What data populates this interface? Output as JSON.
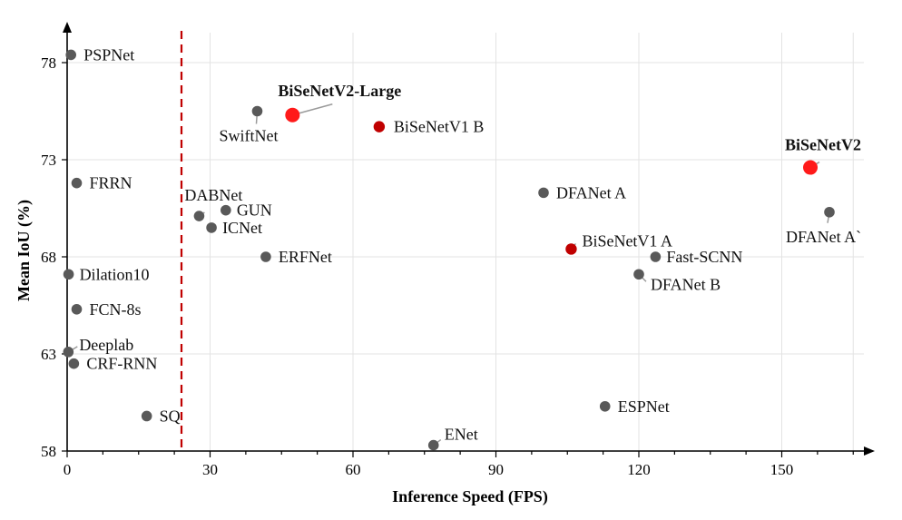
{
  "chart_data": {
    "type": "scatter",
    "title": "",
    "xlabel": "Inference Speed (FPS)",
    "ylabel": "Mean IoU (%)",
    "xlim": [
      0,
      170
    ],
    "ylim": [
      58,
      80
    ],
    "xticks": [
      0,
      30,
      60,
      90,
      120,
      150
    ],
    "yticks": [
      58,
      63,
      68,
      73,
      78
    ],
    "grid": true,
    "threshold_line": {
      "x": 24,
      "style": "dashed",
      "color": "#c00000"
    },
    "colors": {
      "default": "#595959",
      "bisenetv1": "#c00000",
      "bisenetv2": "#ff1a1a"
    },
    "points": [
      {
        "name": "PSPNet",
        "x": 0.8,
        "y": 78.4,
        "group": "default"
      },
      {
        "name": "FRRN",
        "x": 2,
        "y": 71.8,
        "group": "default"
      },
      {
        "name": "Dilation10",
        "x": 0.3,
        "y": 67.1,
        "group": "default"
      },
      {
        "name": "FCN-8s",
        "x": 2,
        "y": 65.3,
        "group": "default"
      },
      {
        "name": "Deeplab",
        "x": 0.25,
        "y": 63.1,
        "group": "default"
      },
      {
        "name": "CRF-RNN",
        "x": 1.4,
        "y": 62.5,
        "group": "default"
      },
      {
        "name": "SQ",
        "x": 16.7,
        "y": 59.8,
        "group": "default"
      },
      {
        "name": "DABNet",
        "x": 27.7,
        "y": 70.1,
        "group": "default"
      },
      {
        "name": "GUN",
        "x": 33.3,
        "y": 70.4,
        "group": "default"
      },
      {
        "name": "ICNet",
        "x": 30.3,
        "y": 69.5,
        "group": "default"
      },
      {
        "name": "ERFNet",
        "x": 41.7,
        "y": 68.0,
        "group": "default"
      },
      {
        "name": "SwiftNet",
        "x": 39.9,
        "y": 75.5,
        "group": "default"
      },
      {
        "name": "BiSeNetV2-Large",
        "x": 47.3,
        "y": 75.3,
        "group": "bisenetv2",
        "bold": true
      },
      {
        "name": "BiSeNetV1 B",
        "x": 65.5,
        "y": 74.7,
        "group": "bisenetv1"
      },
      {
        "name": "ENet",
        "x": 76.9,
        "y": 58.3,
        "group": "default"
      },
      {
        "name": "DFANet A",
        "x": 100,
        "y": 71.3,
        "group": "default"
      },
      {
        "name": "BiSeNetV1 A",
        "x": 105.8,
        "y": 68.4,
        "group": "bisenetv1"
      },
      {
        "name": "Fast-SCNN",
        "x": 123.5,
        "y": 68.0,
        "group": "default"
      },
      {
        "name": "DFANet B",
        "x": 120,
        "y": 67.1,
        "group": "default"
      },
      {
        "name": "ESPNet",
        "x": 112.9,
        "y": 60.3,
        "group": "default"
      },
      {
        "name": "BiSeNetV2",
        "x": 156,
        "y": 72.6,
        "group": "bisenetv2",
        "bold": true
      },
      {
        "name": "DFANet A`",
        "x": 160,
        "y": 70.3,
        "group": "default"
      }
    ]
  }
}
